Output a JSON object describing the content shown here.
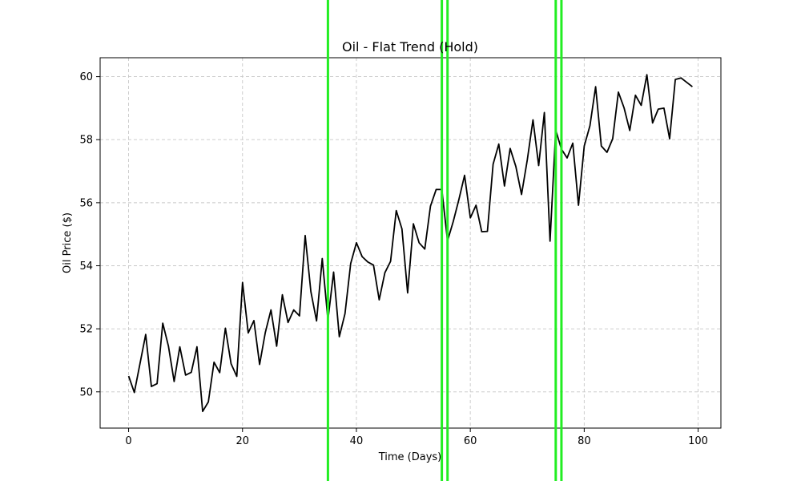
{
  "chart_data": {
    "type": "line",
    "title": "Oil - Flat Trend (Hold)",
    "xlabel": "Time (Days)",
    "ylabel": "Oil Price ($)",
    "xlim": [
      -5,
      104
    ],
    "ylim": [
      48.85,
      60.6
    ],
    "xticks": [
      0,
      20,
      40,
      60,
      80,
      100
    ],
    "yticks": [
      50,
      52,
      54,
      56,
      58,
      60
    ],
    "grid": true,
    "line_color": "#000000",
    "marker_color": "#22ee22",
    "markers_x": [
      35,
      55,
      56,
      75,
      76
    ],
    "series": [
      {
        "x": [
          0,
          1,
          2,
          3,
          4,
          5,
          6,
          7,
          8,
          9,
          10,
          11,
          12,
          13,
          14,
          15,
          16,
          17,
          18,
          19,
          20,
          21,
          22,
          23,
          24,
          25,
          26,
          27,
          28,
          29,
          30,
          31,
          32,
          33,
          34,
          35,
          36,
          37,
          38,
          39,
          40,
          41,
          42,
          43,
          44,
          45,
          46,
          47,
          48,
          49,
          50,
          51,
          52,
          53,
          54,
          55,
          56,
          57,
          58,
          59,
          60,
          61,
          62,
          63,
          64,
          65,
          66,
          67,
          68,
          69,
          70,
          71,
          72,
          73,
          74,
          75,
          76,
          77,
          78,
          79,
          80,
          81,
          82,
          83,
          84,
          85,
          86,
          87,
          88,
          89,
          90,
          91,
          92,
          93,
          94,
          95,
          96,
          97,
          98,
          99
        ],
        "values": [
          50.5,
          49.98,
          50.9,
          51.82,
          50.17,
          50.26,
          52.18,
          51.45,
          50.33,
          51.43,
          50.53,
          50.62,
          51.43,
          49.38,
          49.68,
          50.94,
          50.61,
          52.02,
          50.89,
          50.49,
          53.47,
          51.87,
          52.26,
          50.87,
          51.88,
          52.6,
          51.45,
          53.08,
          52.2,
          52.6,
          52.41,
          54.96,
          53.18,
          52.25,
          54.23,
          52.28,
          53.8,
          51.75,
          52.48,
          54.07,
          54.73,
          54.29,
          54.12,
          54.02,
          52.92,
          53.78,
          54.14,
          55.75,
          55.17,
          53.14,
          55.33,
          54.73,
          54.53,
          55.89,
          56.42,
          56.42,
          54.79,
          55.4,
          56.1,
          56.87,
          55.52,
          55.92,
          55.08,
          55.09,
          57.22,
          57.86,
          56.53,
          57.72,
          57.15,
          56.26,
          57.36,
          58.63,
          57.18,
          58.86,
          54.78,
          58.3,
          57.7,
          57.42,
          57.89,
          55.92,
          57.8,
          58.44,
          59.68,
          57.8,
          57.6,
          58.03,
          59.51,
          59.01,
          58.29,
          59.41,
          59.09,
          60.06,
          58.53,
          58.97,
          59.0,
          58.03,
          59.91,
          59.96,
          59.82,
          59.68
        ]
      }
    ]
  }
}
